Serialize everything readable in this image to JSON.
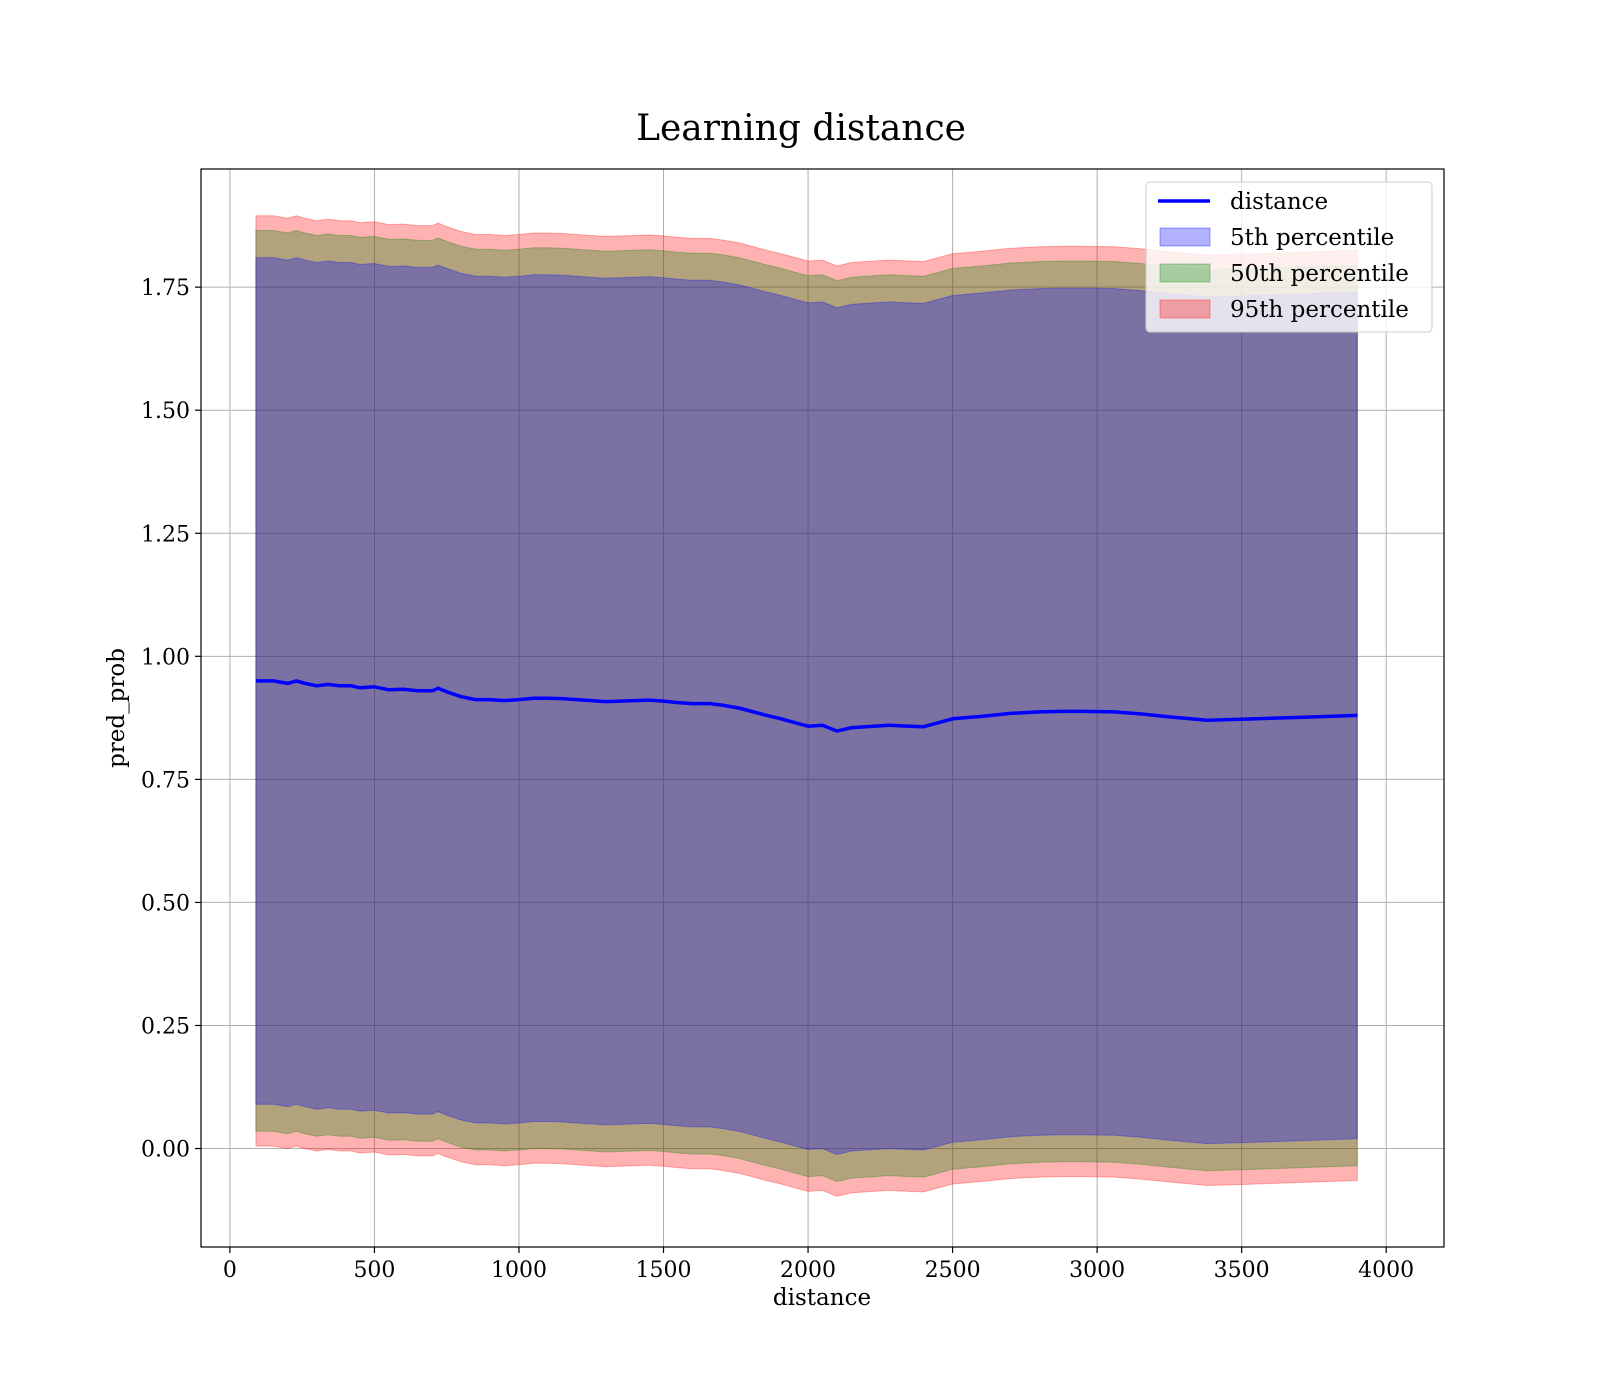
{
  "chart_data": {
    "type": "line",
    "title": "Learning distance",
    "xlabel": "distance",
    "ylabel": "pred_prob",
    "xlim": [
      -100,
      4200
    ],
    "ylim": [
      -0.2,
      1.99
    ],
    "xticks": [
      0,
      500,
      1000,
      1500,
      2000,
      2500,
      3000,
      3500,
      4000
    ],
    "yticks": [
      0.0,
      0.25,
      0.5,
      0.75,
      1.0,
      1.25,
      1.5,
      1.75
    ],
    "ytick_labels": [
      "0.00",
      "0.25",
      "0.50",
      "0.75",
      "1.00",
      "1.25",
      "1.50",
      "1.75"
    ],
    "grid": true,
    "legend_position": "top-right",
    "x": [
      90,
      150,
      200,
      230,
      260,
      300,
      340,
      380,
      420,
      450,
      500,
      550,
      600,
      650,
      700,
      720,
      750,
      800,
      850,
      900,
      950,
      1000,
      1050,
      1100,
      1150,
      1200,
      1250,
      1300,
      1350,
      1400,
      1450,
      1500,
      1550,
      1600,
      1660,
      1700,
      1760,
      1800,
      1850,
      1900,
      1950,
      2000,
      2050,
      2100,
      2150,
      2200,
      2280,
      2350,
      2400,
      2450,
      2500,
      2600,
      2700,
      2800,
      2880,
      2950,
      3060,
      3150,
      3250,
      3380,
      3500,
      3600,
      3700,
      3800,
      3900
    ],
    "series": [
      {
        "name": "distance",
        "kind": "line",
        "color": "#0000ff",
        "values": [
          0.95,
          0.95,
          0.945,
          0.95,
          0.945,
          0.94,
          0.943,
          0.94,
          0.94,
          0.936,
          0.938,
          0.932,
          0.933,
          0.93,
          0.93,
          0.935,
          0.928,
          0.918,
          0.912,
          0.912,
          0.91,
          0.912,
          0.915,
          0.915,
          0.914,
          0.912,
          0.91,
          0.908,
          0.909,
          0.91,
          0.911,
          0.909,
          0.906,
          0.904,
          0.904,
          0.901,
          0.895,
          0.889,
          0.881,
          0.874,
          0.866,
          0.858,
          0.86,
          0.848,
          0.855,
          0.857,
          0.86,
          0.858,
          0.857,
          0.865,
          0.873,
          0.878,
          0.884,
          0.887,
          0.888,
          0.888,
          0.887,
          0.883,
          0.877,
          0.87,
          0.872,
          0.874,
          0.876,
          0.878,
          0.88
        ]
      },
      {
        "name": "5th percentile",
        "kind": "band",
        "color": "#0000ff",
        "offset": 0.86
      },
      {
        "name": "50th percentile",
        "kind": "band",
        "color": "#008000",
        "offset": 0.915
      },
      {
        "name": "95th percentile",
        "kind": "band",
        "color": "#ff0000",
        "offset": 0.945
      }
    ]
  }
}
